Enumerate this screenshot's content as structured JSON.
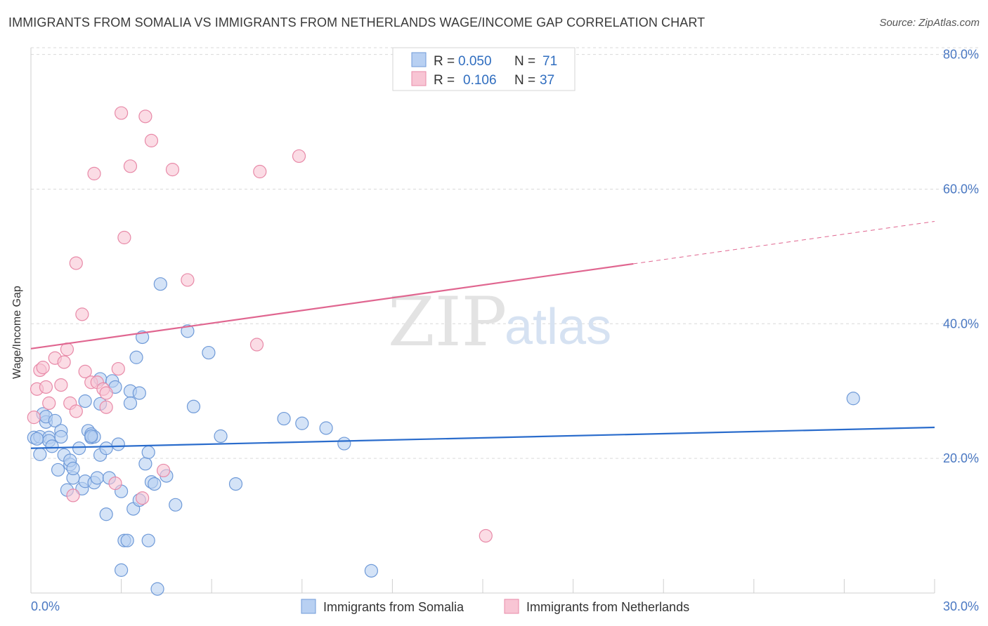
{
  "title": "IMMIGRANTS FROM SOMALIA VS IMMIGRANTS FROM NETHERLANDS WAGE/INCOME GAP CORRELATION CHART",
  "source": "Source: ZipAtlas.com",
  "watermark": {
    "zip": "ZIP",
    "atlas": "atlas"
  },
  "colors": {
    "somalia_fill": "#b8d0f2",
    "somalia_stroke": "#6f9ad8",
    "somalia_line": "#2a6ccc",
    "netherlands_fill": "#f8c5d4",
    "netherlands_stroke": "#e88aa8",
    "netherlands_line": "#e06690",
    "grid": "#d9d9d9",
    "tick_text": "#4a78c2"
  },
  "legend": {
    "rows": [
      {
        "r_label": "R =",
        "r_value": "0.050",
        "n_label": "N =",
        "n_value": "71"
      },
      {
        "r_label": "R =",
        "r_value": "0.106",
        "n_label": "N =",
        "n_value": "37"
      }
    ]
  },
  "chart_data": {
    "type": "scatter",
    "title": "IMMIGRANTS FROM SOMALIA VS IMMIGRANTS FROM NETHERLANDS WAGE/INCOME GAP CORRELATION CHART",
    "xlabel": "",
    "ylabel": "Wage/Income Gap",
    "xlim": [
      0,
      30
    ],
    "ylim": [
      0,
      81
    ],
    "x_tick_labels": [
      "0.0%",
      "30.0%"
    ],
    "y_ticks": [
      20,
      40,
      60,
      80
    ],
    "y_tick_labels": [
      "20.0%",
      "40.0%",
      "60.0%",
      "80.0%"
    ],
    "grid": true,
    "legend_position": "top-center",
    "series": [
      {
        "name": "Immigrants from Somalia",
        "r": 0.05,
        "n": 71,
        "trend": {
          "x0": 0,
          "y0": 21.5,
          "x1": 30,
          "y1": 24.6,
          "dashed_from": null
        },
        "points": [
          [
            0.1,
            23.1
          ],
          [
            0.3,
            20.6
          ],
          [
            0.3,
            23.2
          ],
          [
            0.4,
            26.6
          ],
          [
            0.5,
            25.4
          ],
          [
            0.5,
            26.2
          ],
          [
            0.6,
            23.1
          ],
          [
            0.6,
            22.6
          ],
          [
            0.7,
            21.8
          ],
          [
            0.8,
            25.6
          ],
          [
            0.9,
            18.3
          ],
          [
            1.0,
            24.1
          ],
          [
            1.0,
            23.2
          ],
          [
            1.1,
            20.5
          ],
          [
            1.2,
            15.3
          ],
          [
            1.3,
            19.1
          ],
          [
            1.3,
            19.7
          ],
          [
            1.4,
            17.1
          ],
          [
            1.4,
            18.5
          ],
          [
            1.6,
            21.5
          ],
          [
            1.7,
            15.5
          ],
          [
            1.8,
            16.6
          ],
          [
            1.8,
            28.5
          ],
          [
            1.9,
            24.1
          ],
          [
            2.0,
            23.6
          ],
          [
            2.0,
            23.1
          ],
          [
            2.1,
            23.2
          ],
          [
            2.1,
            16.4
          ],
          [
            2.2,
            17.1
          ],
          [
            2.3,
            31.8
          ],
          [
            2.3,
            20.5
          ],
          [
            2.3,
            28.1
          ],
          [
            2.5,
            21.5
          ],
          [
            2.5,
            11.7
          ],
          [
            2.6,
            17.1
          ],
          [
            2.7,
            31.5
          ],
          [
            2.8,
            30.6
          ],
          [
            2.9,
            22.1
          ],
          [
            3.0,
            15.1
          ],
          [
            3.0,
            3.4
          ],
          [
            3.1,
            7.8
          ],
          [
            3.2,
            7.8
          ],
          [
            3.3,
            30.0
          ],
          [
            3.3,
            28.2
          ],
          [
            3.4,
            12.5
          ],
          [
            3.5,
            35.0
          ],
          [
            3.6,
            29.7
          ],
          [
            3.6,
            13.8
          ],
          [
            3.7,
            38.0
          ],
          [
            3.8,
            19.2
          ],
          [
            3.9,
            20.9
          ],
          [
            3.9,
            7.8
          ],
          [
            4.0,
            16.5
          ],
          [
            4.1,
            16.2
          ],
          [
            4.2,
            0.6
          ],
          [
            4.3,
            45.9
          ],
          [
            4.5,
            17.4
          ],
          [
            4.8,
            13.1
          ],
          [
            5.2,
            38.9
          ],
          [
            5.4,
            27.7
          ],
          [
            5.9,
            35.7
          ],
          [
            6.3,
            23.3
          ],
          [
            6.8,
            16.2
          ],
          [
            8.4,
            25.9
          ],
          [
            9.0,
            25.2
          ],
          [
            9.8,
            24.5
          ],
          [
            10.4,
            22.2
          ],
          [
            11.3,
            3.3
          ],
          [
            27.3,
            28.9
          ],
          [
            0.2,
            22.9
          ],
          [
            2.0,
            23.3
          ]
        ]
      },
      {
        "name": "Immigrants from Netherlands",
        "r": 0.106,
        "n": 37,
        "trend": {
          "x0": 0,
          "y0": 36.3,
          "x1": 30,
          "y1": 55.2,
          "dashed_from": 20.0
        },
        "points": [
          [
            0.1,
            26.1
          ],
          [
            0.2,
            30.3
          ],
          [
            0.3,
            33.1
          ],
          [
            0.4,
            33.5
          ],
          [
            0.5,
            30.6
          ],
          [
            0.6,
            28.2
          ],
          [
            0.8,
            34.9
          ],
          [
            1.0,
            30.9
          ],
          [
            1.1,
            34.3
          ],
          [
            1.2,
            36.2
          ],
          [
            1.3,
            28.2
          ],
          [
            1.4,
            14.5
          ],
          [
            1.5,
            49.0
          ],
          [
            1.5,
            27.0
          ],
          [
            1.7,
            41.4
          ],
          [
            1.8,
            32.9
          ],
          [
            2.0,
            31.3
          ],
          [
            2.1,
            62.3
          ],
          [
            2.2,
            31.3
          ],
          [
            2.4,
            30.3
          ],
          [
            2.5,
            27.6
          ],
          [
            2.5,
            29.7
          ],
          [
            2.8,
            16.3
          ],
          [
            2.9,
            33.3
          ],
          [
            3.0,
            71.3
          ],
          [
            3.1,
            52.8
          ],
          [
            3.3,
            63.4
          ],
          [
            3.7,
            14.1
          ],
          [
            3.8,
            70.8
          ],
          [
            4.0,
            67.2
          ],
          [
            4.4,
            18.2
          ],
          [
            4.7,
            62.9
          ],
          [
            5.2,
            46.5
          ],
          [
            7.5,
            36.9
          ],
          [
            7.6,
            62.6
          ],
          [
            8.9,
            64.9
          ],
          [
            15.1,
            8.5
          ]
        ]
      }
    ]
  },
  "bottom_legend": [
    {
      "label": "Immigrants from Somalia"
    },
    {
      "label": "Immigrants from Netherlands"
    }
  ]
}
